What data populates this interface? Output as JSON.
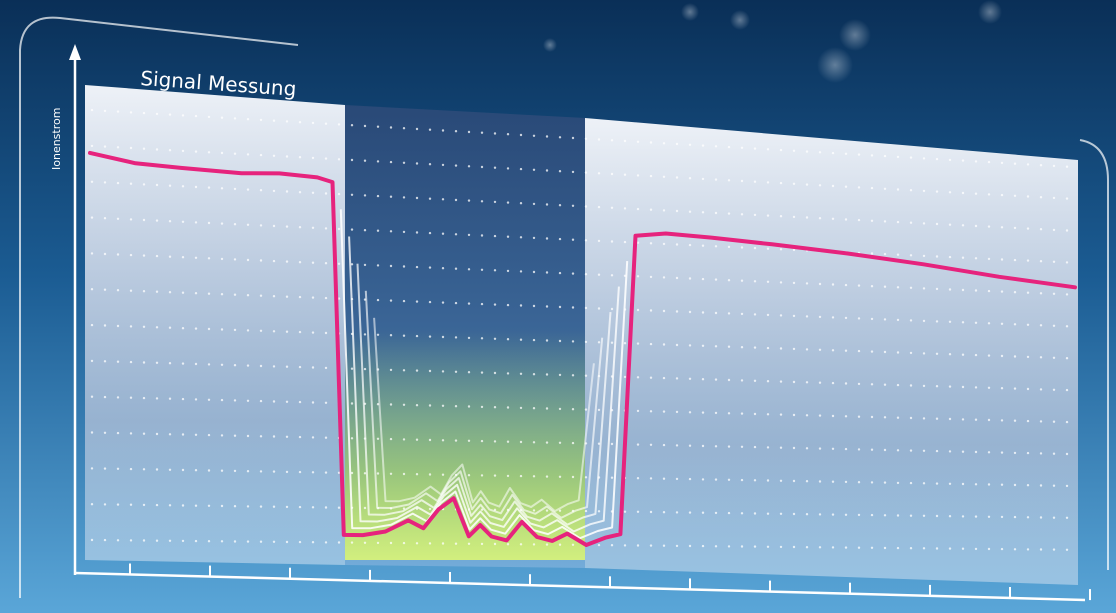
{
  "chart_data": {
    "type": "line",
    "title": "Signal Messung",
    "xlabel": "",
    "ylabel": "Ionenstrom",
    "grid": true,
    "x_tick_count": 14,
    "series": [
      {
        "role": "measured-signal",
        "points": [
          [
            0,
            0.98
          ],
          [
            0.6,
            0.96
          ],
          [
            1.2,
            0.955
          ],
          [
            2.0,
            0.95
          ],
          [
            2.5,
            0.955
          ],
          [
            3.0,
            0.95
          ],
          [
            3.2,
            0.94
          ],
          [
            3.35,
            0.02
          ],
          [
            3.6,
            0.02
          ],
          [
            3.9,
            0.03
          ],
          [
            4.2,
            0.06
          ],
          [
            4.4,
            0.04
          ],
          [
            4.6,
            0.09
          ],
          [
            4.8,
            0.12
          ],
          [
            5.0,
            0.02
          ],
          [
            5.15,
            0.05
          ],
          [
            5.3,
            0.02
          ],
          [
            5.5,
            0.01
          ],
          [
            5.7,
            0.06
          ],
          [
            5.9,
            0.02
          ],
          [
            6.1,
            0.01
          ],
          [
            6.3,
            0.03
          ],
          [
            6.55,
            0.0
          ],
          [
            6.8,
            0.02
          ],
          [
            7.0,
            0.03
          ],
          [
            7.2,
            0.84
          ],
          [
            7.6,
            0.85
          ],
          [
            8.2,
            0.845
          ],
          [
            9.0,
            0.835
          ],
          [
            10.0,
            0.82
          ],
          [
            11.0,
            0.8
          ],
          [
            12.0,
            0.775
          ],
          [
            13.0,
            0.755
          ]
        ]
      },
      {
        "role": "reference-curves",
        "count": 5
      }
    ]
  },
  "colors": {
    "background_top": "#0a2f57",
    "background_bottom": "#5aa6d8",
    "panel_light": "#eef2f8",
    "panel_dark": "#3f5f8d",
    "signal_line": "#e6237d",
    "reference_lines": "#ffffff",
    "fill_glow": "#c4ec4a",
    "axis": "#ffffff",
    "grid_dots": "#ffffff"
  }
}
